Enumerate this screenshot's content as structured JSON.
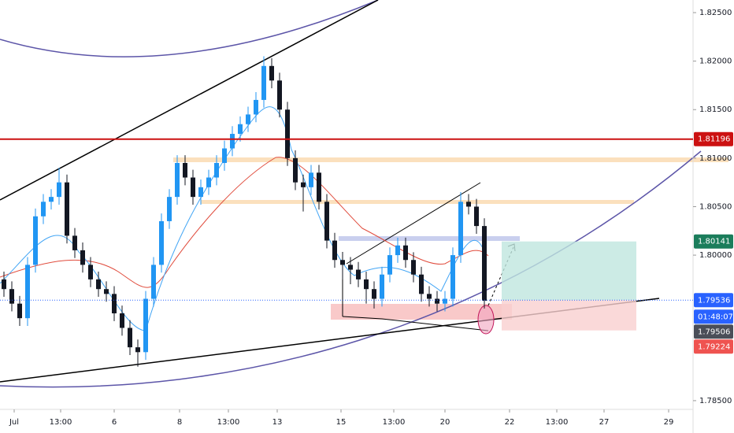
{
  "chart_data": {
    "type": "candlestick",
    "candles": {
      "open": [
        1.7975,
        1.7965,
        1.795,
        1.7935,
        1.799,
        1.804,
        1.8055,
        1.806,
        1.8075,
        1.802,
        1.8005,
        1.799,
        1.7975,
        1.7965,
        1.796,
        1.794,
        1.7925,
        1.7905,
        1.79,
        1.7955,
        1.799,
        1.8035,
        1.806,
        1.8095,
        1.808,
        1.806,
        1.807,
        1.808,
        1.8095,
        1.811,
        1.8125,
        1.8135,
        1.8145,
        1.816,
        1.8195,
        1.818,
        1.815,
        1.81,
        1.8075,
        1.807,
        1.8085,
        1.8055,
        1.8015,
        1.7995,
        1.799,
        1.7985,
        1.7975,
        1.7965,
        1.7955,
        1.798,
        1.8,
        1.801,
        1.7995,
        1.798,
        1.796,
        1.7955,
        1.795,
        1.7955,
        1.8,
        1.8055,
        1.805,
        1.803
      ],
      "high": [
        1.7983,
        1.7973,
        1.7958,
        1.7998,
        1.8048,
        1.8063,
        1.8068,
        1.809,
        1.8083,
        1.8028,
        1.8013,
        1.7998,
        1.7983,
        1.7973,
        1.7968,
        1.7948,
        1.7933,
        1.7913,
        1.7963,
        1.7998,
        1.8043,
        1.8068,
        1.8103,
        1.8103,
        1.8088,
        1.8078,
        1.8088,
        1.8103,
        1.8118,
        1.8133,
        1.8143,
        1.8153,
        1.8168,
        1.8205,
        1.8203,
        1.8188,
        1.8158,
        1.8108,
        1.8083,
        1.8093,
        1.8093,
        1.8063,
        1.8023,
        1.8003,
        1.7998,
        1.7993,
        1.7983,
        1.7973,
        1.7988,
        1.8008,
        1.8018,
        1.8018,
        1.8003,
        1.7988,
        1.7968,
        1.7963,
        1.7963,
        1.8008,
        1.8065,
        1.8063,
        1.8058,
        1.8038
      ],
      "low": [
        1.7957,
        1.7942,
        1.7927,
        1.7927,
        1.7982,
        1.8032,
        1.8047,
        1.8052,
        1.8012,
        1.7997,
        1.7982,
        1.7967,
        1.7957,
        1.7952,
        1.7932,
        1.7917,
        1.7897,
        1.7885,
        1.7892,
        1.7947,
        1.7982,
        1.8027,
        1.8052,
        1.8072,
        1.8052,
        1.8052,
        1.8062,
        1.8072,
        1.8087,
        1.8102,
        1.8117,
        1.8127,
        1.8137,
        1.8152,
        1.8172,
        1.8142,
        1.8092,
        1.8067,
        1.8045,
        1.8062,
        1.8047,
        1.8007,
        1.7987,
        1.7975,
        1.797,
        1.7967,
        1.795,
        1.7945,
        1.7947,
        1.7972,
        1.7992,
        1.7987,
        1.7972,
        1.7952,
        1.7947,
        1.7942,
        1.7942,
        1.7947,
        1.7992,
        1.8042,
        1.8022,
        1.7945
      ],
      "close": [
        1.7965,
        1.795,
        1.7935,
        1.799,
        1.804,
        1.8055,
        1.806,
        1.8075,
        1.802,
        1.8005,
        1.799,
        1.7975,
        1.7965,
        1.796,
        1.794,
        1.7925,
        1.7905,
        1.79,
        1.7955,
        1.799,
        1.8035,
        1.806,
        1.8095,
        1.808,
        1.806,
        1.807,
        1.808,
        1.8095,
        1.811,
        1.8125,
        1.8135,
        1.8145,
        1.816,
        1.8195,
        1.818,
        1.815,
        1.81,
        1.8075,
        1.807,
        1.8085,
        1.8055,
        1.8015,
        1.7995,
        1.799,
        1.7985,
        1.7975,
        1.7965,
        1.7955,
        1.798,
        1.8,
        1.801,
        1.7995,
        1.798,
        1.796,
        1.7955,
        1.795,
        1.7955,
        1.8,
        1.8055,
        1.805,
        1.803,
        1.7953
      ]
    },
    "up_color": "#2196f3",
    "down_color": "#131722",
    "x_labels": [
      "Jul",
      "13:00",
      "6",
      "8",
      "13:00",
      "13",
      "15",
      "13:00",
      "20",
      "22",
      "13:00",
      "27",
      "29"
    ],
    "ylim": [
      1.7841,
      1.8263
    ],
    "yticks": [
      {
        "value": 1.825,
        "label": "1.82500"
      },
      {
        "value": 1.82,
        "label": "1.82000"
      },
      {
        "value": 1.815,
        "label": "1.81500"
      },
      {
        "value": 1.81,
        "label": "1.81000"
      },
      {
        "value": 1.805,
        "label": "1.80500"
      },
      {
        "value": 1.8,
        "label": "1.80000"
      },
      {
        "value": 1.785,
        "label": "1.78500"
      }
    ],
    "price_tags": [
      {
        "value": 1.81196,
        "label": "1.81196",
        "color": "#cc1111"
      },
      {
        "value": 1.80141,
        "label": "1.80141",
        "color": "#1b7d5b"
      },
      {
        "value": 1.79536,
        "label": "1.79536",
        "color": "#2962ff"
      },
      {
        "label": "01:48:07",
        "color": "#2962ff"
      },
      {
        "value": 1.79506,
        "label": "1.79506",
        "color": "#4a4e58"
      },
      {
        "value": 1.79224,
        "label": "1.79224",
        "color": "#ef5350"
      }
    ]
  }
}
